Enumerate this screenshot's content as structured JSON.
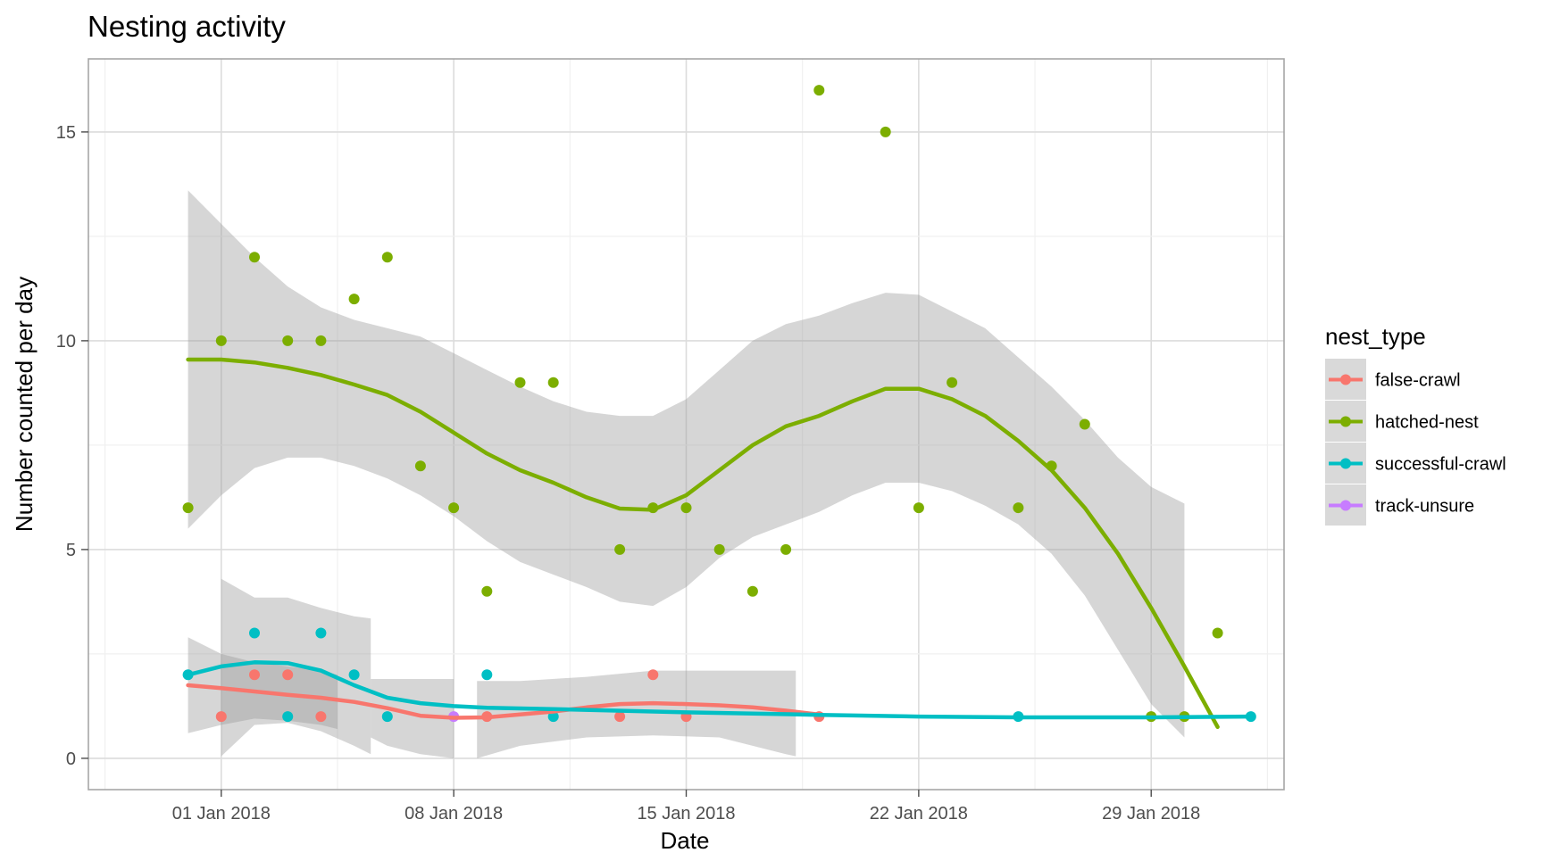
{
  "chart_data": {
    "type": "scatter",
    "title": "Nesting activity",
    "xlabel": "Date",
    "ylabel": "Number counted per day",
    "x_ticks": [
      "01 Jan 2018",
      "08 Jan 2018",
      "15 Jan 2018",
      "22 Jan 2018",
      "29 Jan 2018"
    ],
    "y_ticks": [
      "0",
      "5",
      "10",
      "15"
    ],
    "xlim": [
      "2017-12-28",
      "2018-02-02"
    ],
    "ylim": [
      -0.75,
      16.75
    ],
    "grid": true,
    "legend": {
      "title": "nest_type",
      "placement": "right",
      "entries": [
        "false-crawl",
        "hatched-nest",
        "successful-crawl",
        "track-unsure"
      ]
    },
    "overlay": "loess smooth with grey confidence band",
    "series": [
      {
        "name": "false-crawl",
        "color": "#F8766D",
        "points": [
          {
            "x": "2018-01-01",
            "y": 1
          },
          {
            "x": "2018-01-02",
            "y": 2
          },
          {
            "x": "2018-01-03",
            "y": 2
          },
          {
            "x": "2018-01-04",
            "y": 1
          },
          {
            "x": "2018-01-09",
            "y": 1
          },
          {
            "x": "2018-01-13",
            "y": 1
          },
          {
            "x": "2018-01-14",
            "y": 2
          },
          {
            "x": "2018-01-15",
            "y": 1
          },
          {
            "x": "2018-01-19",
            "y": 1
          }
        ],
        "smooth": [
          {
            "x": "2017-12-31",
            "y": 1.75
          },
          {
            "x": "2018-01-01",
            "y": 1.68
          },
          {
            "x": "2018-01-02",
            "y": 1.6
          },
          {
            "x": "2018-01-03",
            "y": 1.52
          },
          {
            "x": "2018-01-04",
            "y": 1.45
          },
          {
            "x": "2018-01-05",
            "y": 1.35
          },
          {
            "x": "2018-01-06",
            "y": 1.2
          },
          {
            "x": "2018-01-07",
            "y": 1.02
          },
          {
            "x": "2018-01-08",
            "y": 0.97
          },
          {
            "x": "2018-01-09",
            "y": 0.98
          },
          {
            "x": "2018-01-10",
            "y": 1.05
          },
          {
            "x": "2018-01-11",
            "y": 1.12
          },
          {
            "x": "2018-01-12",
            "y": 1.22
          },
          {
            "x": "2018-01-13",
            "y": 1.3
          },
          {
            "x": "2018-01-14",
            "y": 1.32
          },
          {
            "x": "2018-01-15",
            "y": 1.3
          },
          {
            "x": "2018-01-16",
            "y": 1.27
          },
          {
            "x": "2018-01-17",
            "y": 1.22
          },
          {
            "x": "2018-01-18",
            "y": 1.14
          },
          {
            "x": "2018-01-19",
            "y": 1.05
          }
        ]
      },
      {
        "name": "hatched-nest",
        "color": "#7CAE00",
        "points": [
          {
            "x": "2017-12-31",
            "y": 6
          },
          {
            "x": "2018-01-01",
            "y": 10
          },
          {
            "x": "2018-01-02",
            "y": 12
          },
          {
            "x": "2018-01-03",
            "y": 10
          },
          {
            "x": "2018-01-04",
            "y": 10
          },
          {
            "x": "2018-01-05",
            "y": 11
          },
          {
            "x": "2018-01-06",
            "y": 12
          },
          {
            "x": "2018-01-07",
            "y": 7
          },
          {
            "x": "2018-01-08",
            "y": 6
          },
          {
            "x": "2018-01-09",
            "y": 4
          },
          {
            "x": "2018-01-10",
            "y": 9
          },
          {
            "x": "2018-01-11",
            "y": 9
          },
          {
            "x": "2018-01-13",
            "y": 5
          },
          {
            "x": "2018-01-14",
            "y": 6
          },
          {
            "x": "2018-01-15",
            "y": 6
          },
          {
            "x": "2018-01-16",
            "y": 5
          },
          {
            "x": "2018-01-17",
            "y": 4
          },
          {
            "x": "2018-01-18",
            "y": 5
          },
          {
            "x": "2018-01-19",
            "y": 16
          },
          {
            "x": "2018-01-21",
            "y": 15
          },
          {
            "x": "2018-01-22",
            "y": 6
          },
          {
            "x": "2018-01-23",
            "y": 9
          },
          {
            "x": "2018-01-25",
            "y": 6
          },
          {
            "x": "2018-01-26",
            "y": 7
          },
          {
            "x": "2018-01-27",
            "y": 8
          },
          {
            "x": "2018-01-29",
            "y": 1
          },
          {
            "x": "2018-01-30",
            "y": 1
          },
          {
            "x": "2018-01-31",
            "y": 3
          }
        ],
        "smooth": [
          {
            "x": "2017-12-31",
            "y": 9.55
          },
          {
            "x": "2018-01-01",
            "y": 9.55
          },
          {
            "x": "2018-01-02",
            "y": 9.48
          },
          {
            "x": "2018-01-03",
            "y": 9.35
          },
          {
            "x": "2018-01-04",
            "y": 9.18
          },
          {
            "x": "2018-01-05",
            "y": 8.95
          },
          {
            "x": "2018-01-06",
            "y": 8.7
          },
          {
            "x": "2018-01-07",
            "y": 8.3
          },
          {
            "x": "2018-01-08",
            "y": 7.8
          },
          {
            "x": "2018-01-09",
            "y": 7.3
          },
          {
            "x": "2018-01-10",
            "y": 6.9
          },
          {
            "x": "2018-01-11",
            "y": 6.6
          },
          {
            "x": "2018-01-12",
            "y": 6.25
          },
          {
            "x": "2018-01-13",
            "y": 5.98
          },
          {
            "x": "2018-01-14",
            "y": 5.95
          },
          {
            "x": "2018-01-15",
            "y": 6.3
          },
          {
            "x": "2018-01-16",
            "y": 6.9
          },
          {
            "x": "2018-01-17",
            "y": 7.5
          },
          {
            "x": "2018-01-18",
            "y": 7.95
          },
          {
            "x": "2018-01-19",
            "y": 8.2
          },
          {
            "x": "2018-01-20",
            "y": 8.55
          },
          {
            "x": "2018-01-21",
            "y": 8.85
          },
          {
            "x": "2018-01-22",
            "y": 8.85
          },
          {
            "x": "2018-01-23",
            "y": 8.6
          },
          {
            "x": "2018-01-24",
            "y": 8.2
          },
          {
            "x": "2018-01-25",
            "y": 7.6
          },
          {
            "x": "2018-01-26",
            "y": 6.9
          },
          {
            "x": "2018-01-27",
            "y": 6.0
          },
          {
            "x": "2018-01-28",
            "y": 4.9
          },
          {
            "x": "2018-01-29",
            "y": 3.6
          },
          {
            "x": "2018-01-30",
            "y": 2.2
          },
          {
            "x": "2018-01-31",
            "y": 0.75
          }
        ],
        "band_upper": [
          {
            "x": "2017-12-31",
            "y": 13.6
          },
          {
            "x": "2018-01-01",
            "y": 12.8
          },
          {
            "x": "2018-01-02",
            "y": 12.0
          },
          {
            "x": "2018-01-03",
            "y": 11.3
          },
          {
            "x": "2018-01-04",
            "y": 10.8
          },
          {
            "x": "2018-01-05",
            "y": 10.5
          },
          {
            "x": "2018-01-06",
            "y": 10.3
          },
          {
            "x": "2018-01-07",
            "y": 10.1
          },
          {
            "x": "2018-01-08",
            "y": 9.7
          },
          {
            "x": "2018-01-09",
            "y": 9.3
          },
          {
            "x": "2018-01-10",
            "y": 8.9
          },
          {
            "x": "2018-01-11",
            "y": 8.55
          },
          {
            "x": "2018-01-12",
            "y": 8.3
          },
          {
            "x": "2018-01-13",
            "y": 8.2
          },
          {
            "x": "2018-01-14",
            "y": 8.2
          },
          {
            "x": "2018-01-15",
            "y": 8.6
          },
          {
            "x": "2018-01-16",
            "y": 9.3
          },
          {
            "x": "2018-01-17",
            "y": 10.0
          },
          {
            "x": "2018-01-18",
            "y": 10.4
          },
          {
            "x": "2018-01-19",
            "y": 10.6
          },
          {
            "x": "2018-01-20",
            "y": 10.9
          },
          {
            "x": "2018-01-21",
            "y": 11.15
          },
          {
            "x": "2018-01-22",
            "y": 11.1
          },
          {
            "x": "2018-01-23",
            "y": 10.7
          },
          {
            "x": "2018-01-24",
            "y": 10.3
          },
          {
            "x": "2018-01-25",
            "y": 9.6
          },
          {
            "x": "2018-01-26",
            "y": 8.9
          },
          {
            "x": "2018-01-27",
            "y": 8.1
          },
          {
            "x": "2018-01-28",
            "y": 7.2
          },
          {
            "x": "2018-01-29",
            "y": 6.5
          },
          {
            "x": "2018-01-30",
            "y": 6.1
          }
        ],
        "band_lower": [
          {
            "x": "2017-12-31",
            "y": 5.5
          },
          {
            "x": "2018-01-01",
            "y": 6.3
          },
          {
            "x": "2018-01-02",
            "y": 6.95
          },
          {
            "x": "2018-01-03",
            "y": 7.2
          },
          {
            "x": "2018-01-04",
            "y": 7.2
          },
          {
            "x": "2018-01-05",
            "y": 7.0
          },
          {
            "x": "2018-01-06",
            "y": 6.7
          },
          {
            "x": "2018-01-07",
            "y": 6.3
          },
          {
            "x": "2018-01-08",
            "y": 5.8
          },
          {
            "x": "2018-01-09",
            "y": 5.2
          },
          {
            "x": "2018-01-10",
            "y": 4.7
          },
          {
            "x": "2018-01-11",
            "y": 4.4
          },
          {
            "x": "2018-01-12",
            "y": 4.1
          },
          {
            "x": "2018-01-13",
            "y": 3.75
          },
          {
            "x": "2018-01-14",
            "y": 3.65
          },
          {
            "x": "2018-01-15",
            "y": 4.1
          },
          {
            "x": "2018-01-16",
            "y": 4.8
          },
          {
            "x": "2018-01-17",
            "y": 5.3
          },
          {
            "x": "2018-01-18",
            "y": 5.6
          },
          {
            "x": "2018-01-19",
            "y": 5.9
          },
          {
            "x": "2018-01-20",
            "y": 6.3
          },
          {
            "x": "2018-01-21",
            "y": 6.6
          },
          {
            "x": "2018-01-22",
            "y": 6.6
          },
          {
            "x": "2018-01-23",
            "y": 6.4
          },
          {
            "x": "2018-01-24",
            "y": 6.05
          },
          {
            "x": "2018-01-25",
            "y": 5.6
          },
          {
            "x": "2018-01-26",
            "y": 4.9
          },
          {
            "x": "2018-01-27",
            "y": 3.9
          },
          {
            "x": "2018-01-28",
            "y": 2.6
          },
          {
            "x": "2018-01-29",
            "y": 1.3
          },
          {
            "x": "2018-01-30",
            "y": 0.5
          }
        ]
      },
      {
        "name": "successful-crawl",
        "color": "#00BFC4",
        "points": [
          {
            "x": "2017-12-31",
            "y": 2
          },
          {
            "x": "2018-01-02",
            "y": 3
          },
          {
            "x": "2018-01-03",
            "y": 1
          },
          {
            "x": "2018-01-04",
            "y": 3
          },
          {
            "x": "2018-01-05",
            "y": 2
          },
          {
            "x": "2018-01-06",
            "y": 1
          },
          {
            "x": "2018-01-09",
            "y": 2
          },
          {
            "x": "2018-01-11",
            "y": 1
          },
          {
            "x": "2018-01-25",
            "y": 1
          },
          {
            "x": "2018-02-01",
            "y": 1
          }
        ],
        "smooth": [
          {
            "x": "2017-12-31",
            "y": 2.0
          },
          {
            "x": "2018-01-01",
            "y": 2.2
          },
          {
            "x": "2018-01-02",
            "y": 2.3
          },
          {
            "x": "2018-01-03",
            "y": 2.28
          },
          {
            "x": "2018-01-04",
            "y": 2.1
          },
          {
            "x": "2018-01-05",
            "y": 1.75
          },
          {
            "x": "2018-01-06",
            "y": 1.45
          },
          {
            "x": "2018-01-07",
            "y": 1.32
          },
          {
            "x": "2018-01-08",
            "y": 1.25
          },
          {
            "x": "2018-01-09",
            "y": 1.21
          },
          {
            "x": "2018-01-11",
            "y": 1.18
          },
          {
            "x": "2018-01-15",
            "y": 1.1
          },
          {
            "x": "2018-01-19",
            "y": 1.04
          },
          {
            "x": "2018-01-22",
            "y": 1.0
          },
          {
            "x": "2018-01-25",
            "y": 0.98
          },
          {
            "x": "2018-01-29",
            "y": 0.98
          },
          {
            "x": "2018-02-01",
            "y": 1.0
          }
        ]
      },
      {
        "name": "track-unsure",
        "color": "#C77CFF",
        "points": [
          {
            "x": "2018-01-08",
            "y": 1
          }
        ]
      }
    ],
    "small_bands": [
      {
        "upper": [
          {
            "x": "2017-12-31",
            "y": 2.9
          },
          {
            "x": "2018-01-01",
            "y": 2.5
          },
          {
            "x": "2018-01-02",
            "y": 2.3
          },
          {
            "x": "2018-01-03",
            "y": 2.2
          },
          {
            "x": "2018-01-04",
            "y": 2.1
          },
          {
            "x": "2018-01-04.5",
            "y": 2.0
          }
        ],
        "lower": [
          {
            "x": "2017-12-31",
            "y": 0.6
          },
          {
            "x": "2018-01-01",
            "y": 0.8
          },
          {
            "x": "2018-01-02",
            "y": 0.95
          },
          {
            "x": "2018-01-03",
            "y": 0.9
          },
          {
            "x": "2018-01-04",
            "y": 0.8
          },
          {
            "x": "2018-01-04.5",
            "y": 0.7
          }
        ]
      },
      {
        "upper": [
          {
            "x": "2018-01-01",
            "y": 4.3
          },
          {
            "x": "2018-01-02",
            "y": 3.85
          },
          {
            "x": "2018-01-03",
            "y": 3.85
          },
          {
            "x": "2018-01-04",
            "y": 3.6
          },
          {
            "x": "2018-01-05",
            "y": 3.4
          },
          {
            "x": "2018-01-05.5",
            "y": 3.35
          }
        ],
        "lower": [
          {
            "x": "2018-01-01",
            "y": 0.05
          },
          {
            "x": "2018-01-02",
            "y": 0.8
          },
          {
            "x": "2018-01-03",
            "y": 0.85
          },
          {
            "x": "2018-01-04",
            "y": 0.65
          },
          {
            "x": "2018-01-05",
            "y": 0.3
          },
          {
            "x": "2018-01-05.5",
            "y": 0.1
          }
        ]
      },
      {
        "upper": [
          {
            "x": "2018-01-05.5",
            "y": 1.9
          },
          {
            "x": "2018-01-08",
            "y": 1.9
          }
        ],
        "lower": [
          {
            "x": "2018-01-05.5",
            "y": 0.5
          },
          {
            "x": "2018-01-06",
            "y": 0.3
          },
          {
            "x": "2018-01-07",
            "y": 0.1
          },
          {
            "x": "2018-01-08",
            "y": 0.0
          }
        ]
      },
      {
        "upper": [
          {
            "x": "2018-01-08.7",
            "y": 1.85
          },
          {
            "x": "2018-01-10",
            "y": 1.85
          },
          {
            "x": "2018-01-12",
            "y": 1.95
          },
          {
            "x": "2018-01-14",
            "y": 2.1
          },
          {
            "x": "2018-01-16",
            "y": 2.1
          },
          {
            "x": "2018-01-18",
            "y": 2.1
          },
          {
            "x": "2018-01-18.3",
            "y": 2.1
          }
        ],
        "lower": [
          {
            "x": "2018-01-08.7",
            "y": 0.0
          },
          {
            "x": "2018-01-10",
            "y": 0.3
          },
          {
            "x": "2018-01-12",
            "y": 0.5
          },
          {
            "x": "2018-01-14",
            "y": 0.55
          },
          {
            "x": "2018-01-16",
            "y": 0.5
          },
          {
            "x": "2018-01-18",
            "y": 0.1
          },
          {
            "x": "2018-01-18.3",
            "y": 0.05
          }
        ]
      }
    ]
  }
}
